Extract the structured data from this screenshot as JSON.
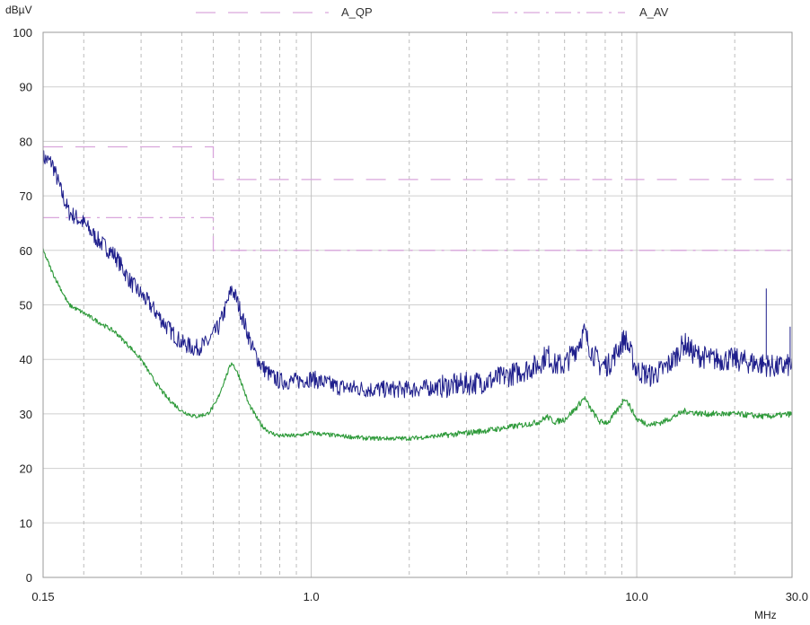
{
  "chart_data": {
    "type": "line",
    "y_unit": "dBµV",
    "x_unit": "MHz",
    "x_scale": "log",
    "xlim": [
      0.15,
      30.0
    ],
    "ylim": [
      0,
      100
    ],
    "x_tick_labels": [
      {
        "value": 0.15,
        "label": "0.15"
      },
      {
        "value": 1.0,
        "label": "1.0"
      },
      {
        "value": 10.0,
        "label": "10.0"
      },
      {
        "value": 30.0,
        "label": "30.0"
      }
    ],
    "y_ticks": [
      0,
      10,
      20,
      30,
      40,
      50,
      60,
      70,
      80,
      90,
      100
    ],
    "x_gridlines": [
      0.2,
      0.3,
      0.4,
      0.5,
      0.6,
      0.7,
      0.8,
      0.9,
      2,
      3,
      4,
      5,
      6,
      7,
      8,
      9,
      20
    ],
    "grid": true,
    "legend_placement": "top",
    "legend": [
      {
        "label": "A_QP",
        "color": "#d9a6dc",
        "dash": "long-dash"
      },
      {
        "label": "A_AV",
        "color": "#d9a6dc",
        "dash": "dash-dot"
      }
    ],
    "limits": [
      {
        "name": "A_QP",
        "color": "#d9a6dc",
        "dash": "long-dash",
        "points": [
          [
            0.15,
            79
          ],
          [
            0.5,
            79
          ],
          [
            0.5,
            73
          ],
          [
            30.0,
            73
          ]
        ]
      },
      {
        "name": "A_AV",
        "color": "#d9a6dc",
        "dash": "dash-dot",
        "points": [
          [
            0.15,
            66
          ],
          [
            0.5,
            66
          ],
          [
            0.5,
            60
          ],
          [
            30.0,
            60
          ]
        ]
      }
    ],
    "series": [
      {
        "color": "#1f1f8c",
        "noise": 1.6,
        "points": [
          [
            0.15,
            77
          ],
          [
            0.16,
            76
          ],
          [
            0.17,
            71
          ],
          [
            0.18,
            67
          ],
          [
            0.2,
            65
          ],
          [
            0.22,
            62
          ],
          [
            0.25,
            59
          ],
          [
            0.28,
            54
          ],
          [
            0.32,
            50
          ],
          [
            0.36,
            46
          ],
          [
            0.4,
            43
          ],
          [
            0.44,
            42
          ],
          [
            0.48,
            43
          ],
          [
            0.52,
            46
          ],
          [
            0.55,
            50
          ],
          [
            0.57,
            53
          ],
          [
            0.59,
            51
          ],
          [
            0.62,
            47
          ],
          [
            0.66,
            42
          ],
          [
            0.7,
            39
          ],
          [
            0.75,
            37
          ],
          [
            0.8,
            36
          ],
          [
            0.9,
            36
          ],
          [
            1.0,
            36.5
          ],
          [
            1.2,
            35
          ],
          [
            1.5,
            34.5
          ],
          [
            2.0,
            34.5
          ],
          [
            2.5,
            35
          ],
          [
            3.0,
            35.5
          ],
          [
            3.5,
            36
          ],
          [
            4.0,
            37
          ],
          [
            4.5,
            38
          ],
          [
            5.0,
            39
          ],
          [
            5.3,
            41
          ],
          [
            5.6,
            39
          ],
          [
            6.0,
            39
          ],
          [
            6.5,
            42
          ],
          [
            6.9,
            45
          ],
          [
            7.2,
            42
          ],
          [
            7.7,
            39
          ],
          [
            8.2,
            39
          ],
          [
            8.8,
            42
          ],
          [
            9.2,
            44
          ],
          [
            9.6,
            41
          ],
          [
            10.0,
            38
          ],
          [
            11.0,
            37
          ],
          [
            12.0,
            38
          ],
          [
            13.0,
            40
          ],
          [
            14.0,
            43
          ],
          [
            15.0,
            41
          ],
          [
            17.0,
            40
          ],
          [
            20.0,
            40
          ],
          [
            22.0,
            39.5
          ],
          [
            25.0,
            39
          ],
          [
            27.0,
            38.5
          ],
          [
            30.0,
            39
          ]
        ]
      },
      {
        "color": "#2e9a3a",
        "noise": 0.4,
        "points": [
          [
            0.15,
            60
          ],
          [
            0.16,
            56
          ],
          [
            0.18,
            50
          ],
          [
            0.2,
            48.5
          ],
          [
            0.22,
            47
          ],
          [
            0.25,
            45
          ],
          [
            0.28,
            42
          ],
          [
            0.3,
            40
          ],
          [
            0.33,
            36
          ],
          [
            0.36,
            33
          ],
          [
            0.4,
            30.5
          ],
          [
            0.44,
            29.5
          ],
          [
            0.48,
            30
          ],
          [
            0.51,
            32
          ],
          [
            0.54,
            36
          ],
          [
            0.57,
            39.5
          ],
          [
            0.6,
            37
          ],
          [
            0.64,
            32
          ],
          [
            0.7,
            28
          ],
          [
            0.75,
            26.5
          ],
          [
            0.8,
            26
          ],
          [
            0.9,
            26
          ],
          [
            1.0,
            26.5
          ],
          [
            1.2,
            26
          ],
          [
            1.5,
            25.5
          ],
          [
            2.0,
            25.5
          ],
          [
            2.5,
            26
          ],
          [
            3.0,
            26.5
          ],
          [
            3.5,
            27
          ],
          [
            4.0,
            27.5
          ],
          [
            4.5,
            28
          ],
          [
            5.0,
            28.5
          ],
          [
            5.3,
            29.5
          ],
          [
            5.6,
            28.5
          ],
          [
            6.0,
            29
          ],
          [
            6.5,
            31
          ],
          [
            6.9,
            33
          ],
          [
            7.2,
            31
          ],
          [
            7.7,
            28.5
          ],
          [
            8.2,
            28.5
          ],
          [
            8.8,
            31
          ],
          [
            9.2,
            33
          ],
          [
            9.6,
            31
          ],
          [
            10.0,
            29
          ],
          [
            11.0,
            28
          ],
          [
            12.0,
            28.5
          ],
          [
            13.0,
            29.5
          ],
          [
            14.0,
            30.5
          ],
          [
            16.0,
            30
          ],
          [
            20.0,
            30
          ],
          [
            25.0,
            29.5
          ],
          [
            30.0,
            30
          ]
        ]
      }
    ],
    "spikes": [
      {
        "color": "#1f1f8c",
        "x": 25.0,
        "y_low": 40,
        "y_high": 53
      },
      {
        "color": "#1f1f8c",
        "x": 29.6,
        "y_low": 39,
        "y_high": 46
      }
    ]
  }
}
